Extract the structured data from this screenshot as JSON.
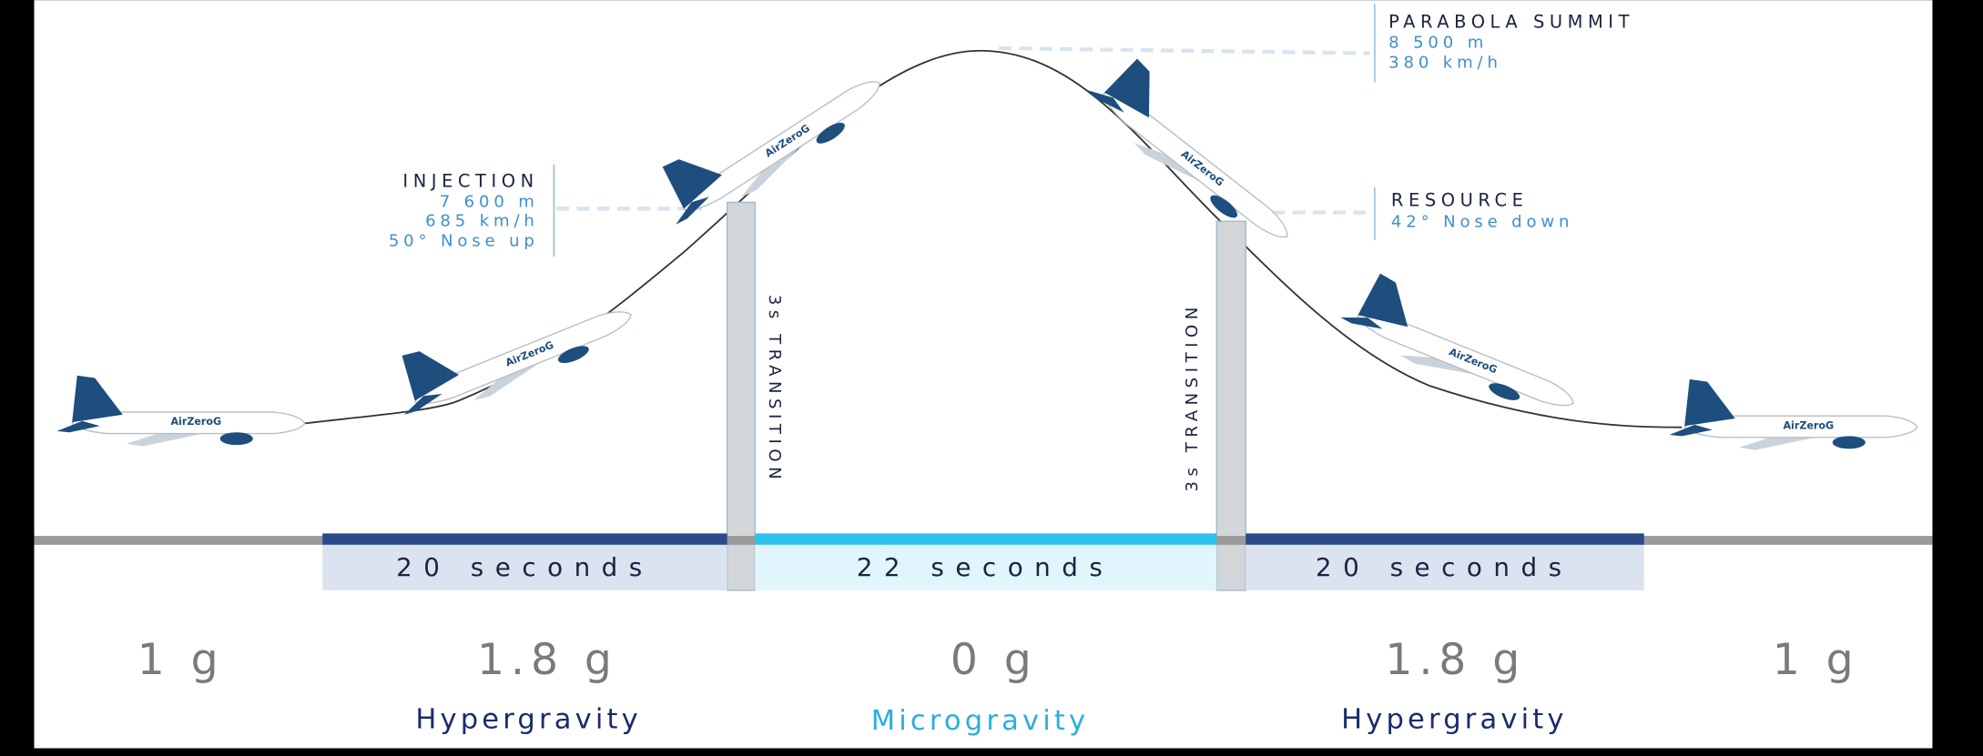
{
  "plane_logo": "AirZeroG",
  "summit": {
    "title": "PARABOLA SUMMIT",
    "lines": [
      "8 500 m",
      "380 km/h"
    ]
  },
  "injection": {
    "title": "INJECTION",
    "lines": [
      "7 600 m",
      "685 km/h",
      "50° Nose up"
    ]
  },
  "resource": {
    "title": "RESOURCE",
    "lines": [
      "42° Nose down"
    ]
  },
  "transitions": [
    "3s TRANSITION",
    "3s TRANSITION"
  ],
  "durations": [
    "20 seconds",
    "22 seconds",
    "20 seconds"
  ],
  "phases": [
    {
      "g": "1 g"
    },
    {
      "g": "1.8 g",
      "label": "Hypergravity"
    },
    {
      "g": "0 g",
      "label": "Microgravity"
    },
    {
      "g": "1.8 g",
      "label": "Hypergravity"
    },
    {
      "g": "1 g"
    }
  ]
}
